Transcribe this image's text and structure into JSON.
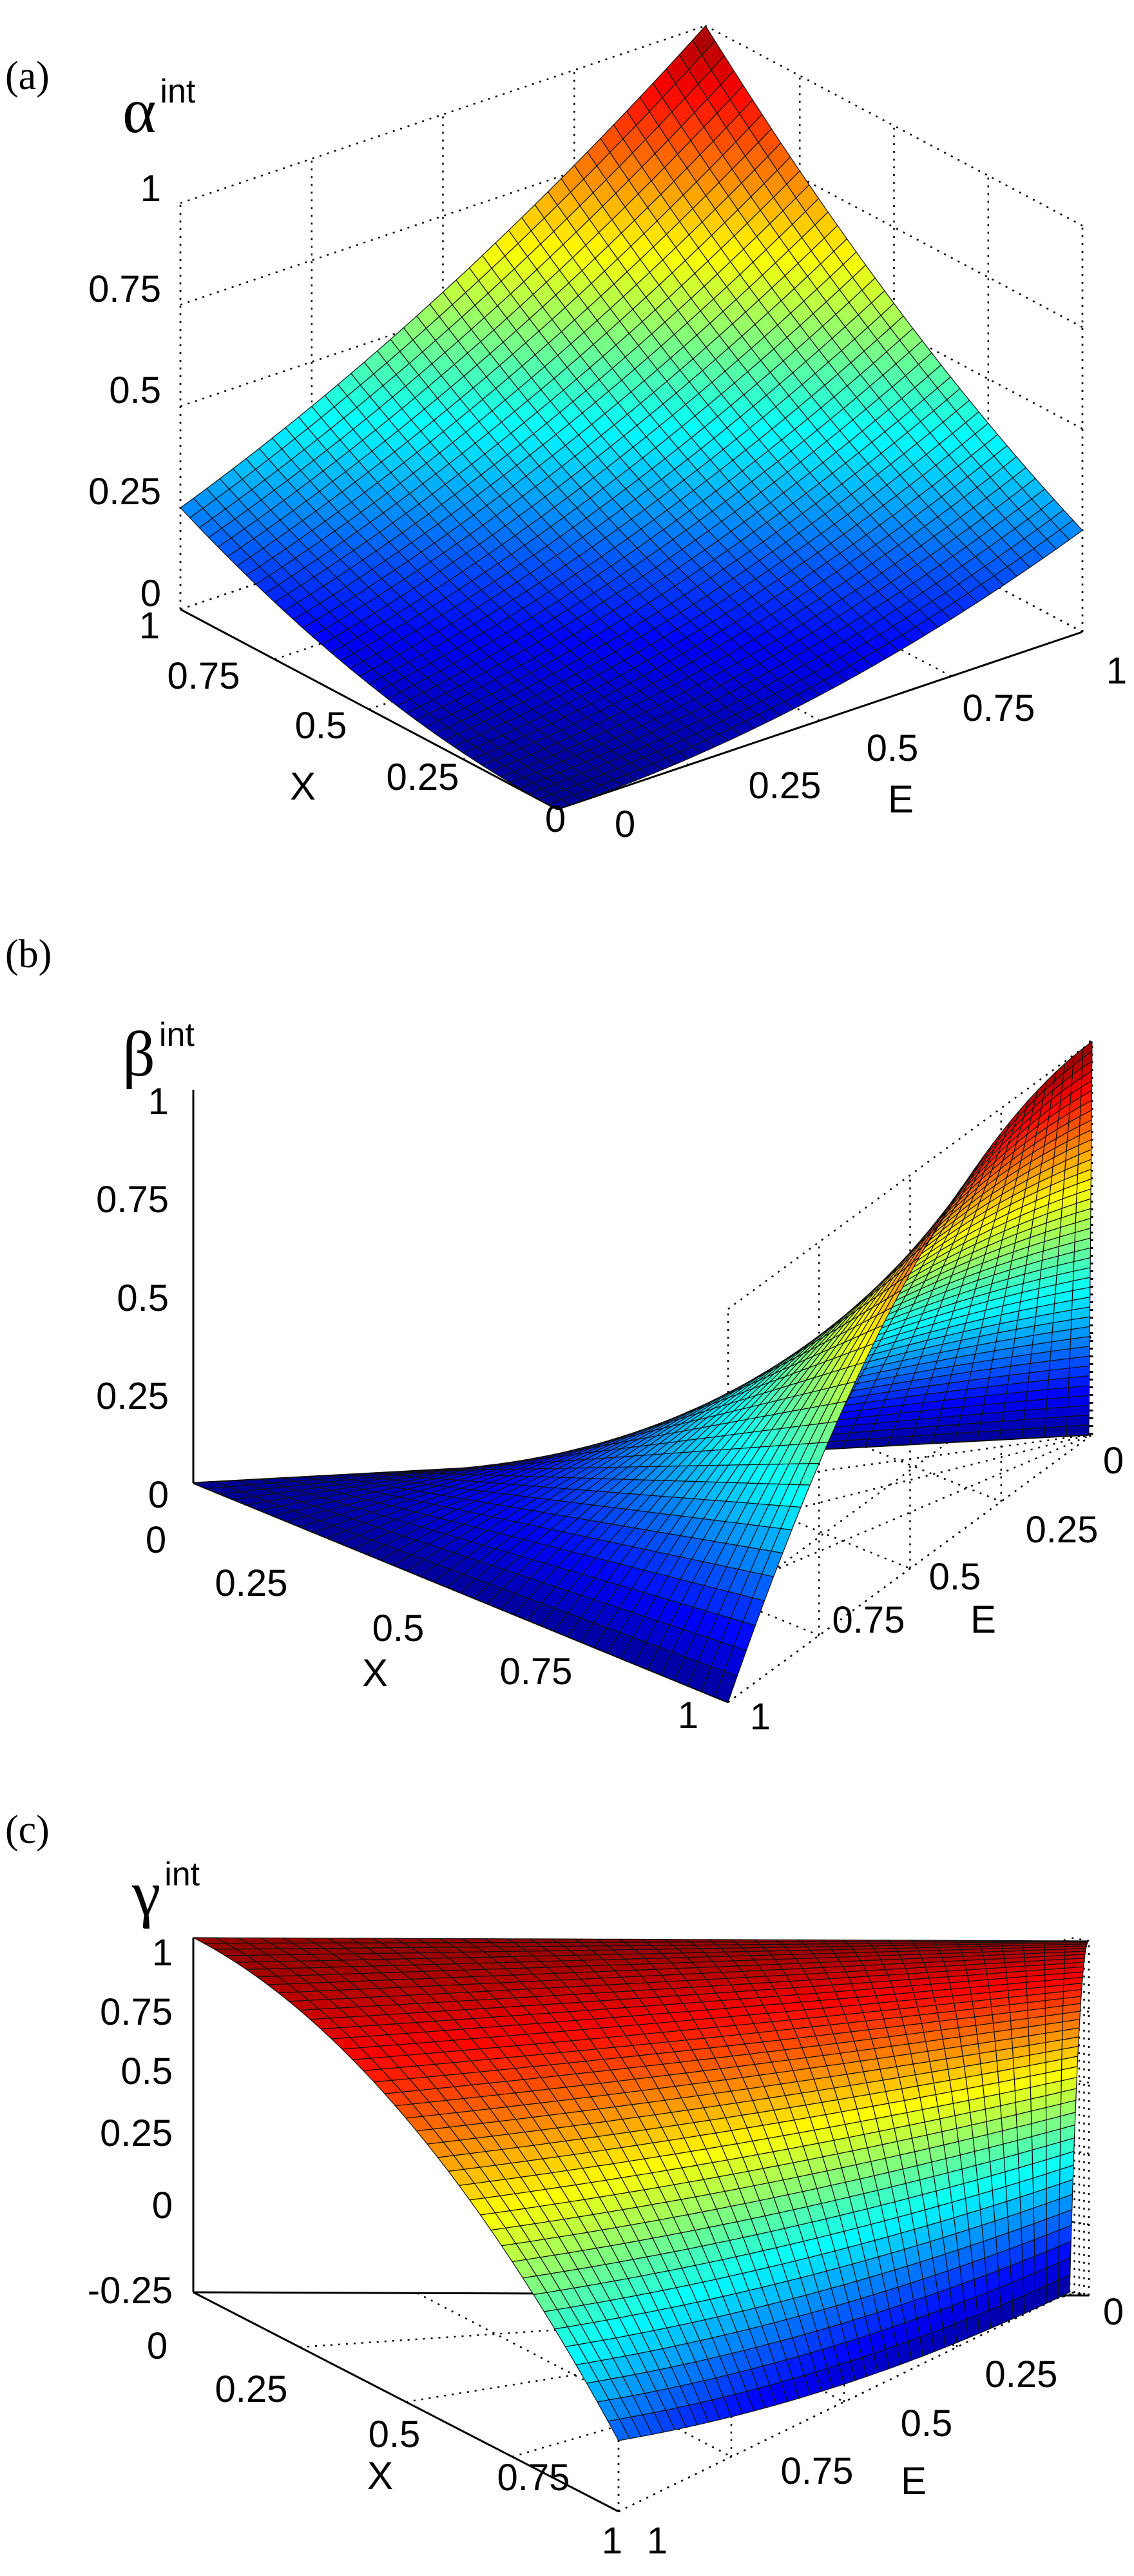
{
  "chart_data": [
    {
      "type": "surface3d",
      "panel_label": "(a)",
      "zlabel": {
        "symbol": "α",
        "sup": "int"
      },
      "xlabel": "X",
      "ylabel": "E",
      "xlim": [
        0,
        1
      ],
      "ylim": [
        0,
        1
      ],
      "zlim": [
        0,
        1
      ],
      "xticks": [
        "0",
        "0.25",
        "0.5",
        "0.75",
        "1"
      ],
      "yticks": [
        "0",
        "0.25",
        "0.5",
        "0.75",
        "1"
      ],
      "zticks": [
        "0",
        "0.25",
        "0.5",
        "0.75",
        "1"
      ],
      "surface": "z = (X + E)^2 / 4",
      "colormap": "jet",
      "grid": true
    },
    {
      "type": "surface3d",
      "panel_label": "(b)",
      "zlabel": {
        "symbol": "β",
        "sup": "int"
      },
      "xlabel": "X",
      "ylabel": "E",
      "xlim": [
        0,
        1
      ],
      "ylim": [
        0,
        1
      ],
      "zlim": [
        0,
        1
      ],
      "xticks": [
        "0",
        "0.25",
        "0.5",
        "0.75",
        "1"
      ],
      "yticks": [
        "0",
        "0.25",
        "0.5",
        "0.75",
        "1"
      ],
      "zticks": [
        "0",
        "0.25",
        "0.5",
        "0.75",
        "1"
      ],
      "surface": "z = X (2E - E^2)",
      "colormap": "jet",
      "grid": true
    },
    {
      "type": "surface3d",
      "panel_label": "(c)",
      "zlabel": {
        "symbol": "γ",
        "sup": "int"
      },
      "xlabel": "X",
      "ylabel": "E",
      "xlim": [
        0,
        1
      ],
      "ylim": [
        0,
        1
      ],
      "zlim": [
        -0.25,
        1
      ],
      "xticks": [
        "0",
        "0.25",
        "0.5",
        "0.75",
        "1"
      ],
      "yticks": [
        "0",
        "0.25",
        "0.5",
        "0.75",
        "1"
      ],
      "zticks": [
        "-0.25",
        "0",
        "0.25",
        "0.5",
        "0.75",
        "1"
      ],
      "surface": "z = 1 - 1.25 X^2 + 0.25 X^2 (1 - E)^2",
      "colormap": "jet",
      "grid": true
    }
  ]
}
